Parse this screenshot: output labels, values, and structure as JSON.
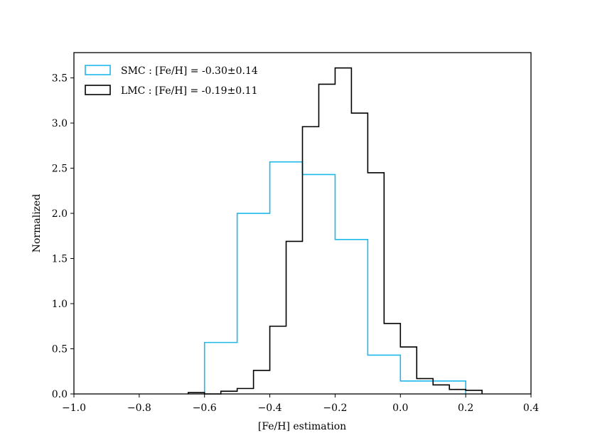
{
  "chart_data": {
    "type": "histogram",
    "title": "",
    "xlabel": "[Fe/H] estimation",
    "ylabel": "Normalized",
    "xlim": [
      -1.0,
      0.4
    ],
    "ylim": [
      0,
      3.78
    ],
    "xticks": [
      -1.0,
      -0.8,
      -0.6,
      -0.4,
      -0.2,
      0.0,
      0.2,
      0.4
    ],
    "xtick_labels": [
      "−1.0",
      "−0.8",
      "−0.6",
      "−0.4",
      "−0.2",
      "0.0",
      "0.2",
      "0.4"
    ],
    "yticks": [
      0.0,
      0.5,
      1.0,
      1.5,
      2.0,
      2.5,
      3.0,
      3.5
    ],
    "ytick_labels": [
      "0.0",
      "0.5",
      "1.0",
      "1.5",
      "2.0",
      "2.5",
      "3.0",
      "3.5"
    ],
    "grid": false,
    "legend_position": "top-left",
    "series": [
      {
        "name": "SMC : [Fe/H] = -0.30±0.14",
        "color": "#1fb8ea",
        "bin_edges": [
          -0.6,
          -0.5,
          -0.4,
          -0.3,
          -0.2,
          -0.1,
          0.0,
          0.1,
          0.2
        ],
        "values": [
          0.57,
          2.0,
          2.57,
          2.43,
          1.71,
          0.43,
          0.143,
          0.143
        ]
      },
      {
        "name": "LMC : [Fe/H] = -0.19±0.11",
        "color": "#000000",
        "bin_edges": [
          -0.65,
          -0.6,
          -0.55,
          -0.5,
          -0.45,
          -0.4,
          -0.35,
          -0.3,
          -0.25,
          -0.2,
          -0.15,
          -0.1,
          -0.05,
          0.0,
          0.05,
          0.1,
          0.15,
          0.2,
          0.25
        ],
        "values": [
          0.015,
          0.0,
          0.03,
          0.06,
          0.26,
          0.75,
          1.69,
          2.96,
          3.43,
          3.61,
          3.11,
          2.45,
          0.78,
          0.52,
          0.17,
          0.1,
          0.05,
          0.04
        ]
      }
    ]
  }
}
